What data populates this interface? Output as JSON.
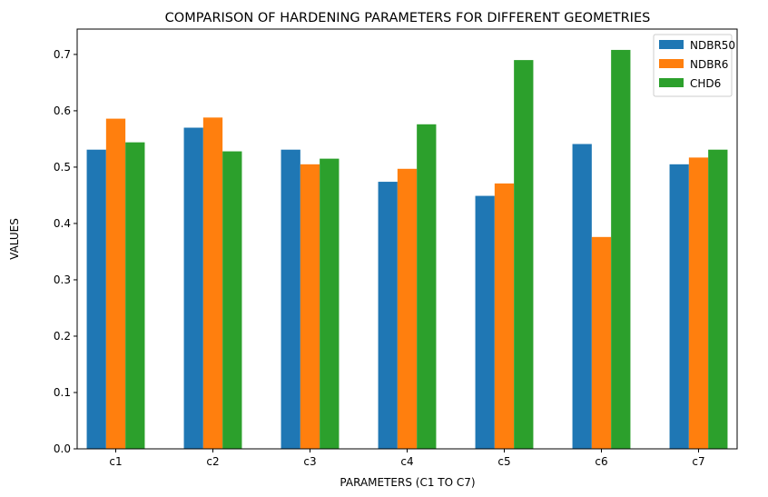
{
  "chart_data": {
    "type": "bar",
    "title": "COMPARISON OF HARDENING PARAMETERS FOR DIFFERENT GEOMETRIES",
    "xlabel": "PARAMETERS (C1 TO C7)",
    "ylabel": "VALUES",
    "categories": [
      "c1",
      "c2",
      "c3",
      "c4",
      "c5",
      "c6",
      "c7"
    ],
    "series": [
      {
        "name": "NDBR50",
        "color": "#1f77b4",
        "values": [
          0.531,
          0.57,
          0.531,
          0.474,
          0.449,
          0.541,
          0.505
        ]
      },
      {
        "name": "NDBR6",
        "color": "#ff7f0e",
        "values": [
          0.586,
          0.588,
          0.505,
          0.497,
          0.471,
          0.376,
          0.517
        ]
      },
      {
        "name": "CHD6",
        "color": "#2ca02c",
        "values": [
          0.544,
          0.528,
          0.515,
          0.576,
          0.69,
          0.708,
          0.531
        ]
      }
    ],
    "ylim": [
      0,
      0.745
    ],
    "yticks": [
      "0.0",
      "0.1",
      "0.2",
      "0.3",
      "0.4",
      "0.5",
      "0.6",
      "0.7"
    ],
    "grid": false,
    "legend_position": "top-right"
  }
}
